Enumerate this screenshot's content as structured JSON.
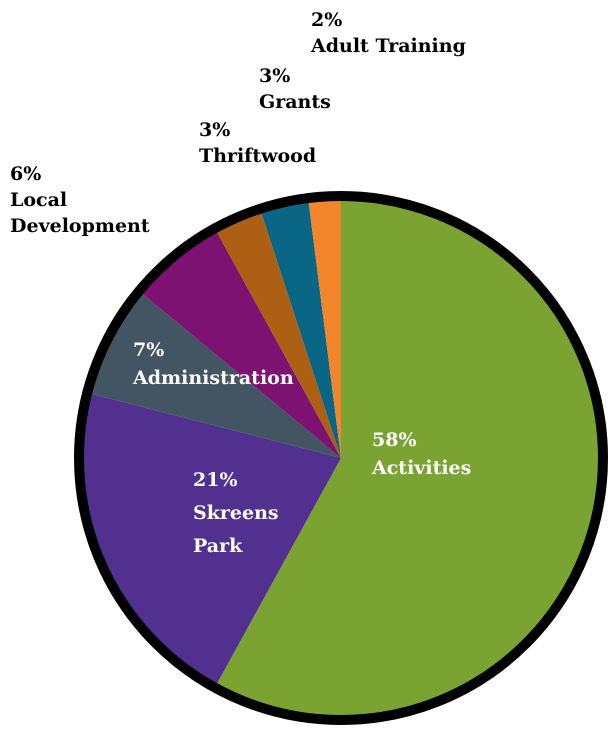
{
  "chart_data": {
    "type": "pie",
    "title": "",
    "legend": "none",
    "slices": [
      {
        "label": "Activities",
        "value": 58,
        "display": "58%",
        "color": "#7aa332",
        "label_inside": true
      },
      {
        "label": "Skreens Park",
        "label_lines": [
          "Skreens",
          "Park"
        ],
        "value": 21,
        "display": "21%",
        "color": "#513090",
        "label_inside": true
      },
      {
        "label": "Administration",
        "value": 7,
        "display": "7%",
        "color": "#435463",
        "label_inside": true
      },
      {
        "label": "Local Development",
        "label_lines": [
          "Local",
          "Development"
        ],
        "value": 6,
        "display": "6%",
        "color": "#7d1272",
        "label_inside": false
      },
      {
        "label": "Thriftwood",
        "value": 3,
        "display": "3%",
        "color": "#ad6014",
        "label_inside": false
      },
      {
        "label": "Grants",
        "value": 3,
        "display": "3%",
        "color": "#0a6685",
        "label_inside": false
      },
      {
        "label": "Adult Training",
        "value": 2,
        "display": "2%",
        "color": "#f3862a",
        "label_inside": false
      }
    ],
    "outline_color": "#000000"
  }
}
